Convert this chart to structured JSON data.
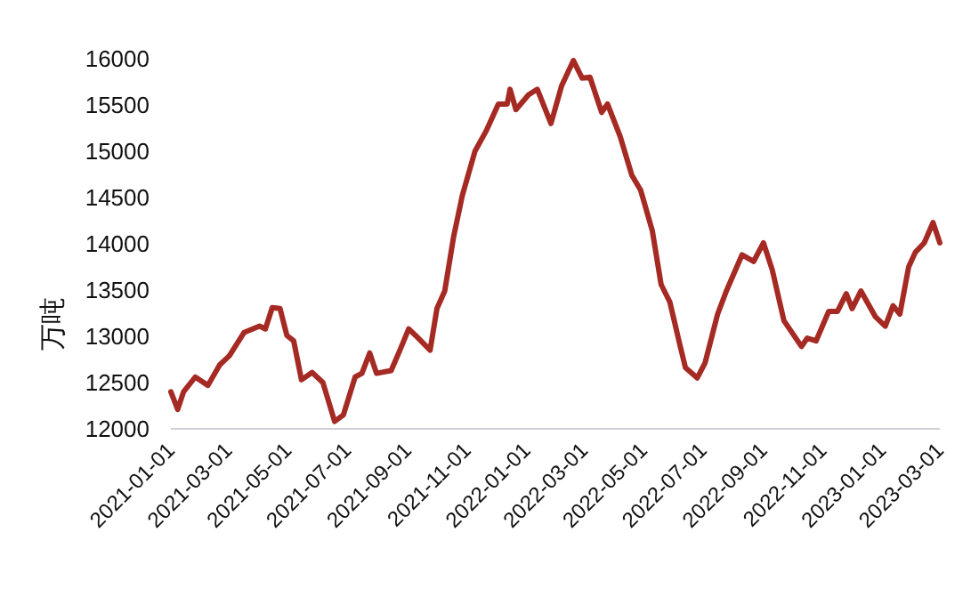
{
  "chart_data": {
    "type": "line",
    "ylabel": "万吨",
    "color": "#a52a23",
    "x": [
      "2021-01-01",
      "2021-01-08",
      "2021-01-14",
      "2021-01-26",
      "2021-02-08",
      "2021-02-20",
      "2021-03-02",
      "2021-03-17",
      "2021-04-02",
      "2021-04-08",
      "2021-04-15",
      "2021-04-23",
      "2021-04-30",
      "2021-05-07",
      "2021-05-15",
      "2021-05-26",
      "2021-06-06",
      "2021-06-18",
      "2021-06-27",
      "2021-07-09",
      "2021-07-16",
      "2021-07-24",
      "2021-07-31",
      "2021-08-15",
      "2021-08-24",
      "2021-09-02",
      "2021-09-09",
      "2021-09-24",
      "2021-10-01",
      "2021-10-09",
      "2021-10-18",
      "2021-10-27",
      "2021-11-09",
      "2021-11-21",
      "2021-12-03",
      "2021-12-12",
      "2021-12-15",
      "2021-12-21",
      "2022-01-03",
      "2022-01-12",
      "2022-01-26",
      "2022-02-06",
      "2022-02-18",
      "2022-02-27",
      "2022-03-07",
      "2022-03-19",
      "2022-03-25",
      "2022-04-07",
      "2022-04-19",
      "2022-04-28",
      "2022-05-10",
      "2022-05-19",
      "2022-05-28",
      "2022-06-07",
      "2022-06-13",
      "2022-06-25",
      "2022-07-03",
      "2022-07-16",
      "2022-07-25",
      "2022-08-10",
      "2022-08-22",
      "2022-09-01",
      "2022-09-10",
      "2022-09-22",
      "2022-10-10",
      "2022-10-16",
      "2022-10-25",
      "2022-11-07",
      "2022-11-16",
      "2022-11-25",
      "2022-12-01",
      "2022-12-10",
      "2022-12-25",
      "2023-01-04",
      "2023-01-12",
      "2023-01-19",
      "2023-01-28",
      "2023-02-04",
      "2023-02-13",
      "2023-02-22",
      "2023-03-01"
    ],
    "values": [
      12400,
      12210,
      12400,
      12560,
      12470,
      12690,
      12790,
      13040,
      13110,
      13080,
      13310,
      13300,
      13010,
      12950,
      12530,
      12610,
      12500,
      12080,
      12150,
      12560,
      12600,
      12820,
      12600,
      12630,
      12850,
      13080,
      13010,
      12850,
      13300,
      13490,
      14070,
      14520,
      15000,
      15230,
      15510,
      15510,
      15670,
      15450,
      15610,
      15670,
      15300,
      15710,
      15980,
      15790,
      15800,
      15420,
      15510,
      15160,
      14740,
      14580,
      14140,
      13560,
      13370,
      12920,
      12660,
      12550,
      12710,
      13240,
      13490,
      13880,
      13810,
      14010,
      13720,
      13170,
      12890,
      12980,
      12950,
      13270,
      13270,
      13460,
      13300,
      13490,
      13210,
      13110,
      13330,
      13240,
      13750,
      13910,
      14010,
      14230,
      14010
    ],
    "xlim": [
      "2021-01-01",
      "2023-03-01"
    ],
    "xticks": [
      "2021-01-01",
      "2021-03-01",
      "2021-05-01",
      "2021-07-01",
      "2021-09-01",
      "2021-11-01",
      "2022-01-01",
      "2022-03-01",
      "2022-05-01",
      "2022-07-01",
      "2022-09-01",
      "2022-11-01",
      "2023-01-01",
      "2023-03-01"
    ],
    "ylim": [
      12000,
      16000
    ],
    "yticks": [
      12000,
      12500,
      13000,
      13500,
      14000,
      14500,
      15000,
      15500,
      16000
    ]
  }
}
